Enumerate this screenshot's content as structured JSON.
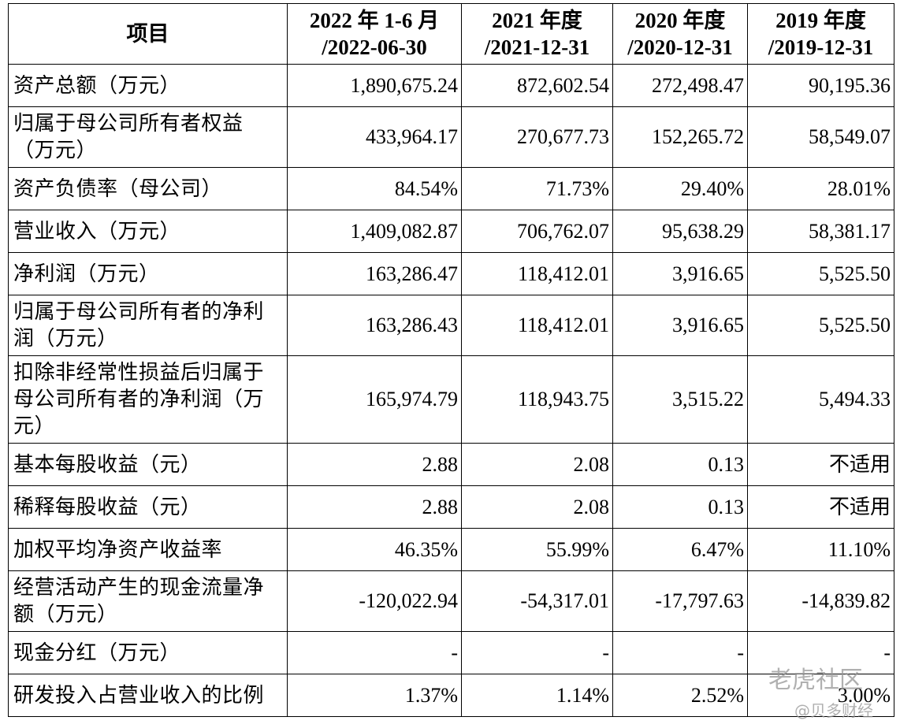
{
  "table": {
    "header": {
      "item": "项目",
      "columns": [
        {
          "period": "2022 年 1-6 月",
          "date": "/2022-06-30"
        },
        {
          "period": "2021 年度",
          "date": "/2021-12-31"
        },
        {
          "period": "2020 年度",
          "date": "/2020-12-31"
        },
        {
          "period": "2019 年度",
          "date": "/2019-12-31"
        }
      ]
    },
    "rows": [
      [
        "资产总额（万元）",
        "1,890,675.24",
        "872,602.54",
        "272,498.47",
        "90,195.36"
      ],
      [
        "归属于母公司所有者权益（万元）",
        "433,964.17",
        "270,677.73",
        "152,265.72",
        "58,549.07"
      ],
      [
        "资产负债率（母公司）",
        "84.54%",
        "71.73%",
        "29.40%",
        "28.01%"
      ],
      [
        "营业收入（万元）",
        "1,409,082.87",
        "706,762.07",
        "95,638.29",
        "58,381.17"
      ],
      [
        "净利润（万元）",
        "163,286.47",
        "118,412.01",
        "3,916.65",
        "5,525.50"
      ],
      [
        "归属于母公司所有者的净利润（万元）",
        "163,286.43",
        "118,412.01",
        "3,916.65",
        "5,525.50"
      ],
      [
        "扣除非经常性损益后归属于母公司所有者的净利润（万元）",
        "165,974.79",
        "118,943.75",
        "3,515.22",
        "5,494.33"
      ],
      [
        "基本每股收益（元）",
        "2.88",
        "2.08",
        "0.13",
        "不适用"
      ],
      [
        "稀释每股收益（元）",
        "2.88",
        "2.08",
        "0.13",
        "不适用"
      ],
      [
        "加权平均净资产收益率",
        "46.35%",
        "55.99%",
        "6.47%",
        "11.10%"
      ],
      [
        "经营活动产生的现金流量净额（万元）",
        "-120,022.94",
        "-54,317.01",
        "-17,797.63",
        "-14,839.82"
      ],
      [
        "现金分红（万元）",
        "-",
        "-",
        "-",
        "-"
      ],
      [
        "研发投入占营业收入的比例",
        "1.37%",
        "1.14%",
        "2.52%",
        "3.00%"
      ]
    ]
  },
  "watermark": {
    "brand": "老虎社区",
    "author": "@贝多财经"
  }
}
